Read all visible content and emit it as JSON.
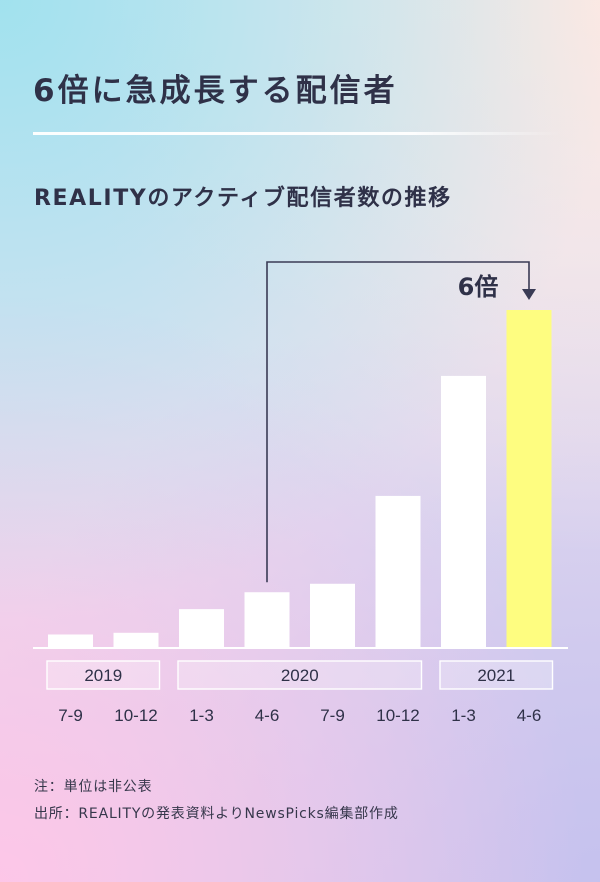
{
  "title": "6倍に急成長する配信者",
  "subtitle": "REALITYのアクティブ配信者数の推移",
  "notes": {
    "unit": "注：単位は非公表",
    "source": "出所：REALITYの発表資料よりNewsPicks編集部作成"
  },
  "colors": {
    "text": "#2f3148",
    "bar": "#ffffff",
    "highlight": "#fefd80",
    "arrow": "#3a3b55",
    "axis": "#ffffff",
    "year_border": "#ffffff"
  },
  "chart_data": {
    "type": "bar",
    "title": "REALITYのアクティブ配信者数の推移",
    "categories": [
      "7-9",
      "10-12",
      "1-3",
      "4-6",
      "7-9",
      "10-12",
      "1-3",
      "4-6"
    ],
    "years": [
      {
        "label": "2019",
        "start": 0,
        "end": 1
      },
      {
        "label": "2020",
        "start": 2,
        "end": 5
      },
      {
        "label": "2021",
        "start": 6,
        "end": 7
      }
    ],
    "values": [
      0.8,
      0.9,
      2.3,
      3.3,
      3.8,
      9.0,
      16.1,
      20.0
    ],
    "unit_note": "注：単位は非公表",
    "highlight_index": 7,
    "annotation": {
      "text": "6倍",
      "from_index": 3,
      "to_index": 7
    },
    "ylim": [
      0,
      20.0
    ],
    "grid": false,
    "legend": "none"
  }
}
